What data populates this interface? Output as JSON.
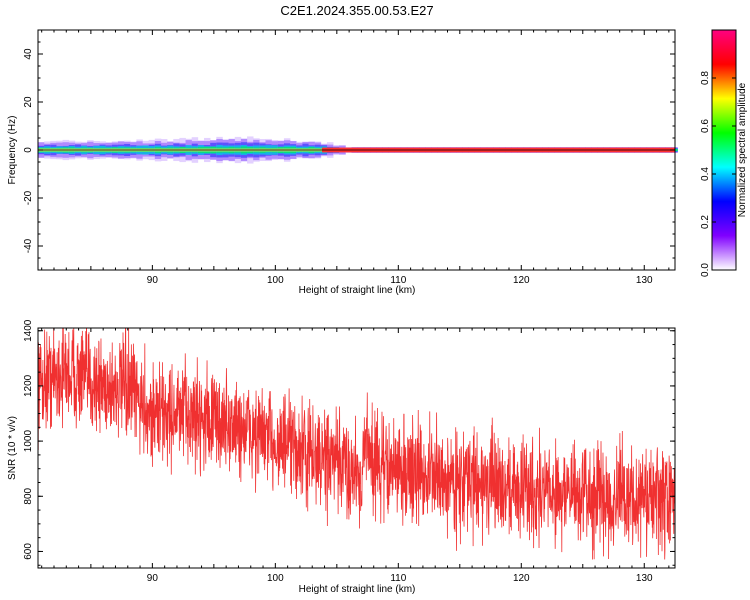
{
  "title": "C2E1.2024.355.00.53.E27",
  "chart_data": [
    {
      "type": "heatmap",
      "xlabel": "Height of straight line (km)",
      "ylabel": "Frequency (Hz)",
      "xlim": [
        80.7,
        132.5
      ],
      "ylim": [
        -50,
        50
      ],
      "x_ticks": [
        "90",
        "100",
        "110",
        "120",
        "130"
      ],
      "y_ticks": [
        "-40",
        "-20",
        "0",
        "20",
        "40"
      ],
      "colorbar": {
        "label": "Normalized spectral amplitude",
        "range": [
          0,
          1
        ],
        "ticks": [
          "0.0",
          "0.2",
          "0.4",
          "0.6",
          "0.8"
        ],
        "colors": [
          "#ffffff",
          "#8000ff",
          "#0000ff",
          "#00ffff",
          "#00ff00",
          "#ffff00",
          "#ff0000",
          "#ff0080"
        ]
      },
      "band": {
        "center_hz": 0,
        "bright_core_from_km": 103.8,
        "diffuse_halo_halfwidth_hz": [
          {
            "x": 81,
            "hz": 3.5
          },
          {
            "x": 90,
            "hz": 4.0
          },
          {
            "x": 97,
            "hz": 5.0
          },
          {
            "x": 103,
            "hz": 4.0
          },
          {
            "x": 106,
            "hz": 1.5
          },
          {
            "x": 132.5,
            "hz": 1.5
          }
        ]
      }
    },
    {
      "type": "line",
      "xlabel": "Height of straight line (km)",
      "ylabel": "SNR (10 * v/v)",
      "xlim": [
        80.7,
        132.5
      ],
      "ylim": [
        540,
        1410
      ],
      "x_ticks": [
        "90",
        "100",
        "110",
        "120",
        "130"
      ],
      "y_ticks": [
        "600",
        "800",
        "1000",
        "1200",
        "1400"
      ],
      "line_color": "#f03030",
      "trend": {
        "x": [
          81,
          83,
          86,
          88,
          90,
          92,
          94,
          96,
          98,
          100,
          102,
          104,
          106,
          107,
          107.5,
          108,
          109,
          111,
          114,
          118,
          122,
          126,
          129,
          132.5
        ],
        "y": [
          1220,
          1250,
          1200,
          1190,
          1100,
          1100,
          1090,
          1060,
          1030,
          1000,
          960,
          930,
          900,
          880,
          1020,
          920,
          900,
          890,
          860,
          840,
          820,
          800,
          790,
          780
        ]
      },
      "noise_amplitude": 90
    }
  ]
}
